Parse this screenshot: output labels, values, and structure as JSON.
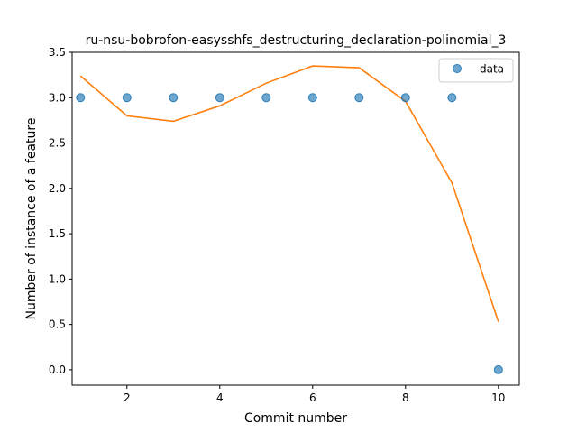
{
  "chart_data": {
    "type": "scatter",
    "title": "ru-nsu-bobrofon-easysshfs_destructuring_declaration-polinomial_3",
    "xlabel": "Commit number",
    "ylabel": "Number of instance of a feature",
    "xlim": [
      0.82,
      10.45
    ],
    "ylim": [
      -0.17,
      3.5
    ],
    "xticks": [
      2,
      4,
      6,
      8,
      10
    ],
    "yticks": [
      0.0,
      0.5,
      1.0,
      1.5,
      2.0,
      2.5,
      3.0,
      3.5
    ],
    "xtick_labels": [
      "2",
      "4",
      "6",
      "8",
      "10"
    ],
    "ytick_labels": [
      "0.0",
      "0.5",
      "1.0",
      "1.5",
      "2.0",
      "2.5",
      "3.0",
      "3.5"
    ],
    "grid": false,
    "legend": {
      "position": "top-right",
      "entries": [
        "data"
      ]
    },
    "series": [
      {
        "name": "data",
        "kind": "scatter",
        "color": "#1f77b4",
        "x": [
          1,
          2,
          3,
          4,
          5,
          6,
          7,
          8,
          9,
          10
        ],
        "y": [
          3,
          3,
          3,
          3,
          3,
          3,
          3,
          3,
          3,
          0
        ]
      },
      {
        "kind": "line",
        "color": "#ff7f0e",
        "x": [
          1,
          2,
          3,
          4,
          5,
          6,
          7,
          8,
          9,
          10
        ],
        "y": [
          3.24,
          2.8,
          2.74,
          2.91,
          3.16,
          3.35,
          3.33,
          2.96,
          2.06,
          0.53
        ]
      }
    ]
  }
}
